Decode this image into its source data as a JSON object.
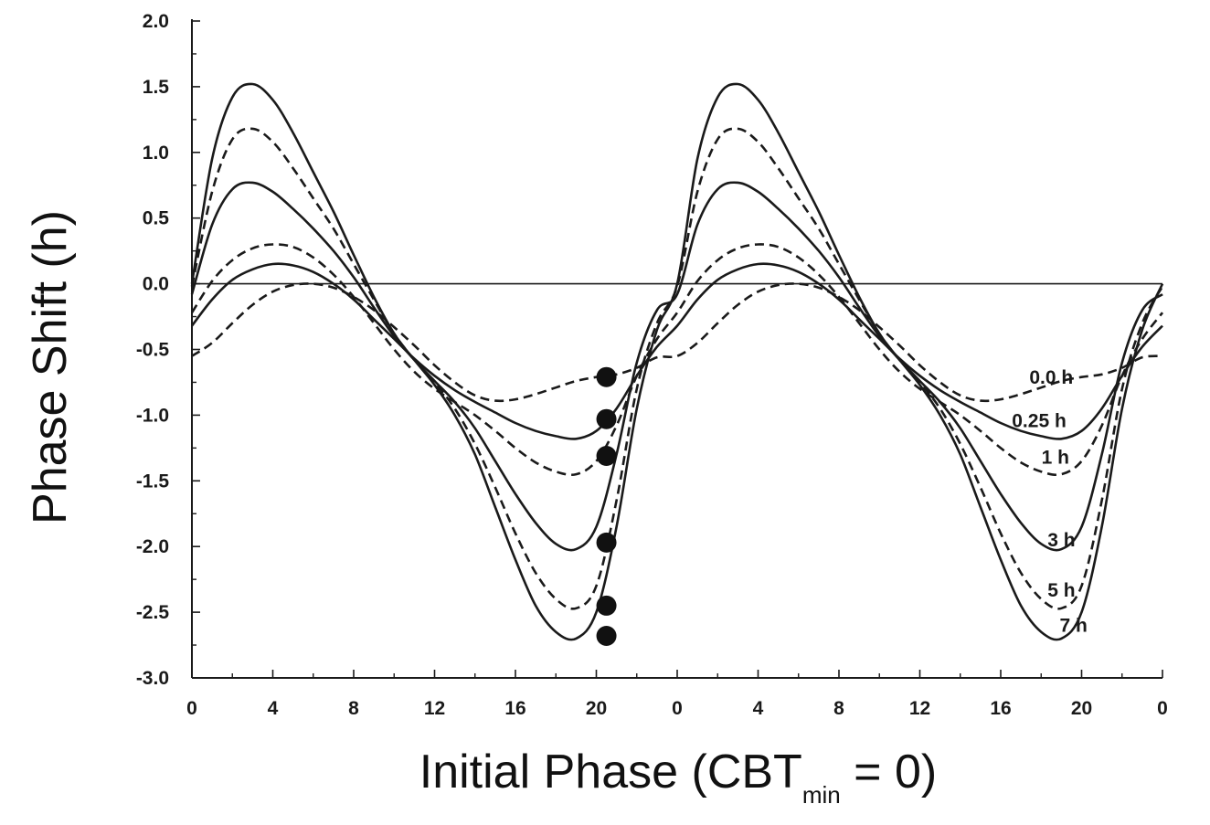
{
  "chart_data": {
    "type": "line",
    "title": "",
    "xlabel": {
      "main": "Initial Phase (CBT",
      "sub": "min",
      "tail": " = 0)"
    },
    "ylabel": "Phase Shift (h)",
    "xlim": [
      0,
      48
    ],
    "ylim": [
      -3.0,
      2.0
    ],
    "x_ticks": [
      0,
      4,
      8,
      12,
      16,
      20,
      24,
      28,
      32,
      36,
      40,
      44,
      48
    ],
    "x_tick_labels": [
      "0",
      "4",
      "8",
      "12",
      "16",
      "20",
      "0",
      "4",
      "8",
      "12",
      "16",
      "20",
      "0"
    ],
    "y_ticks": [
      2.0,
      1.5,
      1.0,
      0.5,
      0.0,
      -0.5,
      -1.0,
      -1.5,
      -2.0,
      -2.5,
      -3.0
    ],
    "y_tick_labels": [
      "2.0",
      "1.5",
      "1.0",
      "0.5",
      "0.0",
      "-0.5",
      "-1.0",
      "-1.5",
      "-2.0",
      "-2.5",
      "-3.0"
    ],
    "zero_line": true,
    "grid": false,
    "series": [
      {
        "name": "0.0 h",
        "style": "dashed",
        "x": [
          0,
          1,
          2,
          3,
          4,
          5,
          6,
          7,
          8,
          9,
          10,
          11,
          12,
          13,
          14,
          15,
          16,
          17,
          18,
          19,
          20,
          21,
          22,
          23,
          24,
          25,
          26,
          27,
          28,
          29,
          30,
          31,
          32,
          33,
          34,
          35,
          36,
          37,
          38,
          39,
          40,
          41,
          42,
          43,
          44,
          45,
          46,
          47,
          48
        ],
        "values": [
          -0.55,
          -0.45,
          -0.3,
          -0.16,
          -0.06,
          -0.01,
          0.0,
          -0.03,
          -0.1,
          -0.2,
          -0.33,
          -0.47,
          -0.62,
          -0.75,
          -0.85,
          -0.89,
          -0.88,
          -0.84,
          -0.79,
          -0.74,
          -0.71,
          -0.69,
          -0.64,
          -0.56,
          -0.55,
          -0.45,
          -0.3,
          -0.16,
          -0.06,
          -0.01,
          0.0,
          -0.03,
          -0.1,
          -0.2,
          -0.33,
          -0.47,
          -0.62,
          -0.75,
          -0.85,
          -0.89,
          -0.88,
          -0.84,
          -0.79,
          -0.74,
          -0.71,
          -0.69,
          -0.64,
          -0.56,
          -0.55
        ]
      },
      {
        "name": "0.25 h",
        "style": "solid",
        "x": [
          0,
          1,
          2,
          3,
          4,
          5,
          6,
          7,
          8,
          9,
          10,
          11,
          12,
          13,
          14,
          15,
          16,
          17,
          18,
          19,
          20,
          21,
          22,
          23,
          24,
          25,
          26,
          27,
          28,
          29,
          30,
          31,
          32,
          33,
          34,
          35,
          36,
          37,
          38,
          39,
          40,
          41,
          42,
          43,
          44,
          45,
          46,
          47,
          48
        ],
        "values": [
          -0.32,
          -0.12,
          0.03,
          0.11,
          0.15,
          0.14,
          0.09,
          0.0,
          -0.12,
          -0.27,
          -0.42,
          -0.57,
          -0.7,
          -0.81,
          -0.9,
          -0.98,
          -1.06,
          -1.12,
          -1.16,
          -1.18,
          -1.12,
          -0.95,
          -0.7,
          -0.48,
          -0.32,
          -0.12,
          0.03,
          0.11,
          0.15,
          0.14,
          0.09,
          0.0,
          -0.12,
          -0.27,
          -0.42,
          -0.57,
          -0.7,
          -0.81,
          -0.9,
          -0.98,
          -1.06,
          -1.12,
          -1.16,
          -1.18,
          -1.12,
          -0.95,
          -0.7,
          -0.48,
          -0.32
        ]
      },
      {
        "name": "1 h",
        "style": "dashed",
        "x": [
          0,
          1,
          2,
          3,
          4,
          5,
          6,
          7,
          8,
          9,
          10,
          11,
          12,
          13,
          14,
          15,
          16,
          17,
          18,
          19,
          20,
          21,
          22,
          23,
          24,
          25,
          26,
          27,
          28,
          29,
          30,
          31,
          32,
          33,
          34,
          35,
          36,
          37,
          38,
          39,
          40,
          41,
          42,
          43,
          44,
          45,
          46,
          47,
          48
        ],
        "values": [
          -0.22,
          0.02,
          0.18,
          0.27,
          0.3,
          0.28,
          0.2,
          0.07,
          -0.1,
          -0.3,
          -0.5,
          -0.67,
          -0.8,
          -0.9,
          -1.0,
          -1.12,
          -1.25,
          -1.36,
          -1.43,
          -1.45,
          -1.35,
          -1.08,
          -0.7,
          -0.42,
          -0.22,
          0.02,
          0.18,
          0.27,
          0.3,
          0.28,
          0.2,
          0.07,
          -0.1,
          -0.3,
          -0.5,
          -0.67,
          -0.8,
          -0.9,
          -1.0,
          -1.12,
          -1.25,
          -1.36,
          -1.43,
          -1.45,
          -1.35,
          -1.08,
          -0.7,
          -0.42,
          -0.22
        ]
      },
      {
        "name": "3 h",
        "style": "solid",
        "x": [
          0,
          1,
          2,
          3,
          4,
          5,
          6,
          7,
          8,
          9,
          10,
          11,
          12,
          13,
          14,
          15,
          16,
          17,
          18,
          19,
          20,
          21,
          22,
          23,
          24,
          25,
          26,
          27,
          28,
          29,
          30,
          31,
          32,
          33,
          34,
          35,
          36,
          37,
          38,
          39,
          40,
          41,
          42,
          43,
          44,
          45,
          46,
          47,
          48
        ],
        "values": [
          -0.08,
          0.45,
          0.72,
          0.77,
          0.7,
          0.57,
          0.42,
          0.25,
          0.05,
          -0.18,
          -0.4,
          -0.58,
          -0.74,
          -0.9,
          -1.1,
          -1.35,
          -1.6,
          -1.82,
          -1.98,
          -2.02,
          -1.85,
          -1.3,
          -0.6,
          -0.2,
          -0.08,
          0.45,
          0.72,
          0.77,
          0.7,
          0.57,
          0.42,
          0.25,
          0.05,
          -0.18,
          -0.4,
          -0.58,
          -0.74,
          -0.9,
          -1.1,
          -1.35,
          -1.6,
          -1.82,
          -1.98,
          -2.02,
          -1.85,
          -1.3,
          -0.6,
          -0.2,
          -0.08
        ]
      },
      {
        "name": "5 h",
        "style": "dashed",
        "x": [
          0,
          1,
          2,
          3,
          4,
          5,
          6,
          7,
          8,
          9,
          10,
          11,
          12,
          13,
          14,
          15,
          16,
          17,
          18,
          19,
          20,
          21,
          22,
          23,
          24,
          25,
          26,
          27,
          28,
          29,
          30,
          31,
          32,
          33,
          34,
          35,
          36,
          37,
          38,
          39,
          40,
          41,
          42,
          43,
          44,
          45,
          46,
          47,
          48
        ],
        "values": [
          -0.02,
          0.7,
          1.1,
          1.18,
          1.08,
          0.88,
          0.65,
          0.42,
          0.15,
          -0.12,
          -0.38,
          -0.58,
          -0.75,
          -0.95,
          -1.22,
          -1.55,
          -1.9,
          -2.2,
          -2.4,
          -2.47,
          -2.3,
          -1.65,
          -0.8,
          -0.3,
          -0.02,
          0.7,
          1.1,
          1.18,
          1.08,
          0.88,
          0.65,
          0.42,
          0.15,
          -0.12,
          -0.38,
          -0.58,
          -0.75,
          -0.95,
          -1.22,
          -1.55,
          -1.9,
          -2.2,
          -2.4,
          -2.47,
          -2.3,
          -1.65,
          -0.8,
          -0.3,
          -0.02
        ]
      },
      {
        "name": "7 h",
        "style": "solid",
        "x": [
          0,
          1,
          2,
          3,
          4,
          5,
          6,
          7,
          8,
          9,
          10,
          11,
          12,
          13,
          14,
          15,
          16,
          17,
          18,
          19,
          20,
          21,
          22,
          23,
          24,
          25,
          26,
          27,
          28,
          29,
          30,
          31,
          32,
          33,
          34,
          35,
          36,
          37,
          38,
          39,
          40,
          41,
          42,
          43,
          44,
          45,
          46,
          47,
          48
        ],
        "values": [
          0.0,
          0.95,
          1.42,
          1.52,
          1.4,
          1.15,
          0.85,
          0.55,
          0.22,
          -0.1,
          -0.38,
          -0.58,
          -0.77,
          -1.0,
          -1.3,
          -1.7,
          -2.1,
          -2.45,
          -2.65,
          -2.7,
          -2.5,
          -1.85,
          -0.95,
          -0.35,
          0.0,
          0.95,
          1.42,
          1.52,
          1.4,
          1.15,
          0.85,
          0.55,
          0.22,
          -0.1,
          -0.38,
          -0.58,
          -0.77,
          -1.0,
          -1.3,
          -1.7,
          -2.1,
          -2.45,
          -2.65,
          -2.7,
          -2.5,
          -1.85,
          -0.95,
          -0.35,
          0.0
        ]
      }
    ],
    "markers": {
      "x": 20.5,
      "values": [
        -0.71,
        -1.03,
        -1.31,
        -1.97,
        -2.45,
        -2.68
      ]
    },
    "curve_labels": [
      {
        "text": "0.0 h",
        "x": 42.5,
        "y": -0.76
      },
      {
        "text": "0.25 h",
        "x": 41.9,
        "y": -1.09
      },
      {
        "text": "1 h",
        "x": 42.7,
        "y": -1.37
      },
      {
        "text": "3 h",
        "x": 43.0,
        "y": -2.0
      },
      {
        "text": "5 h",
        "x": 43.0,
        "y": -2.38
      },
      {
        "text": "7 h",
        "x": 43.6,
        "y": -2.65
      }
    ]
  }
}
